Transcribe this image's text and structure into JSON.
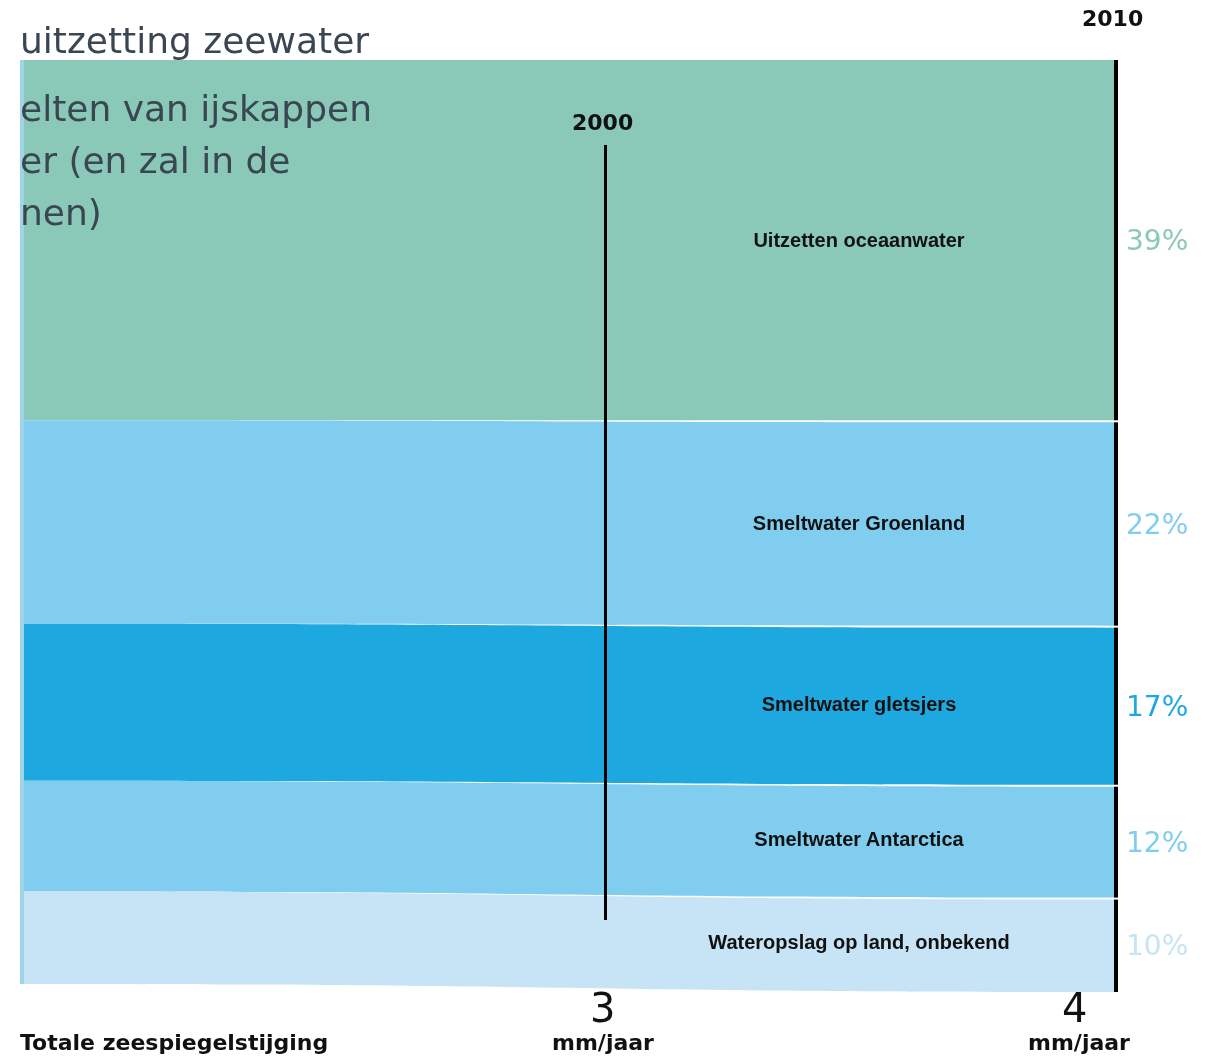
{
  "chart_data": {
    "type": "other",
    "categories": [
      "Uitzetten oceaanwater",
      "Smeltwater Groenland",
      "Smeltwater gletsjers",
      "Smeltwater Antarctica",
      "Wateropslag op land, onbekend"
    ],
    "values": [
      39,
      22,
      17,
      12,
      10
    ],
    "value_labels": [
      "39%",
      "22%",
      "17%",
      "12%",
      "10%"
    ],
    "colors": [
      "#8ac9b8",
      "#80cdf0",
      "#1ea8e0",
      "#80cdf0",
      "#c6e4f5"
    ],
    "xlabel": "Totale zeespiegelstijging",
    "annotations": [
      "uitzetting zeewater",
      "elten van ijskappen",
      "er (en zal in de",
      "nen)",
      "2000",
      "3",
      "mm/jaar",
      "2010",
      "4",
      "mm/jaar"
    ]
  }
}
